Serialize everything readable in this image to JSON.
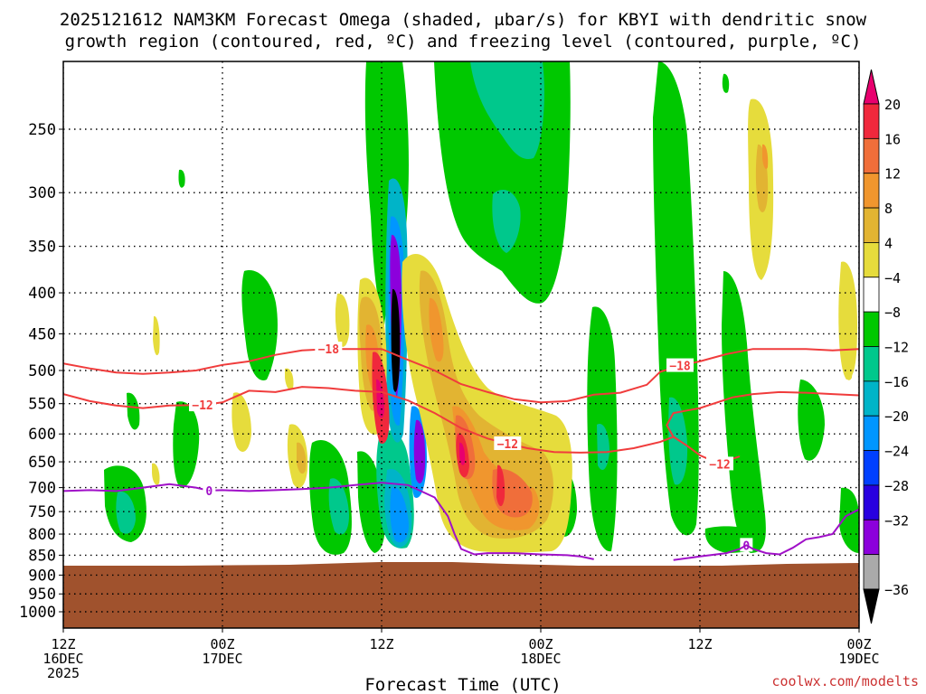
{
  "title_line1": "2025121612 NAM3KM Forecast Omega (shaded, μbar/s) for KBYI with dendritic snow",
  "title_line2": "growth region (contoured, red, ºC) and freezing level (contoured, purple, ºC)",
  "xlabel": "Forecast Time (UTC)",
  "credit": "coolwx.com/modelts",
  "chart_data": {
    "type": "heatmap",
    "title": "2025121612 NAM3KM Forecast Omega (shaded, μbar/s) for KBYI with dendritic snow growth region (contoured, red, ºC) and freezing level (contoured, purple, ºC)",
    "xlabel": "Forecast Time (UTC)",
    "ylabel": "",
    "x_ticks": [
      {
        "hour": 0,
        "line1": "12Z",
        "line2": "16DEC",
        "line3": "2025"
      },
      {
        "hour": 12,
        "line1": "00Z",
        "line2": "17DEC",
        "line3": ""
      },
      {
        "hour": 24,
        "line1": "12Z",
        "line2": "",
        "line3": ""
      },
      {
        "hour": 36,
        "line1": "00Z",
        "line2": "18DEC",
        "line3": ""
      },
      {
        "hour": 48,
        "line1": "12Z",
        "line2": "",
        "line3": ""
      },
      {
        "hour": 60,
        "line1": "00Z",
        "line2": "19DEC",
        "line3": ""
      }
    ],
    "xlim": [
      0,
      60
    ],
    "y_ticks": [
      250,
      300,
      350,
      400,
      450,
      500,
      550,
      600,
      650,
      700,
      750,
      800,
      850,
      900,
      950,
      1000
    ],
    "ylim": [
      200,
      1050
    ],
    "y_scale": "log-pressure (inverted)",
    "grid": true,
    "colorbar": {
      "labels": [
        "20",
        "16",
        "12",
        "8",
        "4",
        "−4",
        "−8",
        "−12",
        "−16",
        "−20",
        "−24",
        "−28",
        "−32",
        "−36"
      ],
      "levels": [
        20,
        16,
        12,
        8,
        4,
        -4,
        -8,
        -12,
        -16,
        -20,
        -24,
        -28,
        -32,
        -36
      ],
      "colors": [
        "#e8006e",
        "#f0283c",
        "#f06e3a",
        "#f0962e",
        "#e2b432",
        "#e6dc3c",
        "#ffffff",
        "#00c800",
        "#00c88c",
        "#00b4c8",
        "#0096ff",
        "#0040ff",
        "#2800e0",
        "#8c00dc",
        "#aaaaaa",
        "#000000"
      ]
    },
    "terrain": {
      "surface_pressure": 868,
      "color": "#a0522d"
    },
    "contours": [
      {
        "name": "-18",
        "color": "#f03c3c",
        "label_positions": [
          {
            "hour": 20,
            "p": 470
          },
          {
            "hour": 46.5,
            "p": 493
          }
        ],
        "points": [
          [
            0,
            490
          ],
          [
            2,
            497
          ],
          [
            4,
            503
          ],
          [
            6,
            505
          ],
          [
            8,
            503
          ],
          [
            10,
            500
          ],
          [
            12,
            492
          ],
          [
            14,
            487
          ],
          [
            16,
            478
          ],
          [
            18,
            472
          ],
          [
            20,
            470
          ],
          [
            22,
            470
          ],
          [
            24,
            470
          ],
          [
            26,
            485
          ],
          [
            28,
            500
          ],
          [
            30,
            520
          ],
          [
            32,
            532
          ],
          [
            34,
            543
          ],
          [
            36,
            548
          ],
          [
            38,
            546
          ],
          [
            40,
            536
          ],
          [
            42,
            533
          ],
          [
            44,
            521
          ],
          [
            45,
            502
          ],
          [
            46.5,
            493
          ],
          [
            48,
            487
          ],
          [
            50,
            477
          ],
          [
            52,
            470
          ],
          [
            54,
            470
          ],
          [
            56,
            470
          ],
          [
            58,
            472
          ],
          [
            60,
            470
          ]
        ]
      },
      {
        "name": "-12",
        "color": "#f03c3c",
        "label_positions": [
          {
            "hour": 10.5,
            "p": 552
          },
          {
            "hour": 33.5,
            "p": 617
          },
          {
            "hour": 49.5,
            "p": 654
          }
        ],
        "points": [
          [
            0,
            535
          ],
          [
            2,
            546
          ],
          [
            4,
            553
          ],
          [
            6,
            557
          ],
          [
            8,
            553
          ],
          [
            10.5,
            552
          ],
          [
            12,
            548
          ],
          [
            14,
            530
          ],
          [
            16,
            532
          ],
          [
            18,
            524
          ],
          [
            20,
            526
          ],
          [
            22,
            530
          ],
          [
            24,
            532
          ],
          [
            26,
            545
          ],
          [
            28,
            565
          ],
          [
            30,
            590
          ],
          [
            32,
            608
          ],
          [
            33.5,
            617
          ],
          [
            35,
            625
          ],
          [
            37,
            632
          ],
          [
            39,
            633
          ],
          [
            41,
            632
          ],
          [
            43,
            625
          ],
          [
            45,
            614
          ],
          [
            46,
            605
          ],
          [
            47,
            620
          ],
          [
            48,
            638
          ],
          [
            49.5,
            654
          ],
          [
            50,
            648
          ],
          [
            51,
            640
          ]
        ]
      },
      {
        "name": "-12b",
        "color": "#f03c3c",
        "label_positions": [],
        "points": [
          [
            50.5,
            540
          ],
          [
            52,
            535
          ],
          [
            54,
            532
          ],
          [
            56,
            533
          ],
          [
            58,
            535
          ],
          [
            60,
            537
          ]
        ]
      },
      {
        "name": "-12c",
        "color": "#f03c3c",
        "label_positions": [],
        "points": [
          [
            46,
            605
          ],
          [
            45.5,
            585
          ],
          [
            46,
            565
          ],
          [
            48,
            557
          ],
          [
            50.5,
            540
          ]
        ]
      },
      {
        "name": "0",
        "color": "#a010c8",
        "label_positions": [
          {
            "hour": 11,
            "p": 706
          },
          {
            "hour": 51.5,
            "p": 826
          }
        ],
        "points": [
          [
            0,
            707
          ],
          [
            2,
            705
          ],
          [
            4,
            707
          ],
          [
            6,
            700
          ],
          [
            8,
            693
          ],
          [
            10,
            700
          ],
          [
            11,
            706
          ],
          [
            12,
            705
          ],
          [
            14,
            707
          ],
          [
            16,
            705
          ],
          [
            18,
            703
          ],
          [
            20,
            700
          ],
          [
            22,
            695
          ],
          [
            24,
            690
          ],
          [
            26,
            695
          ],
          [
            28,
            720
          ],
          [
            29,
            760
          ],
          [
            29.5,
            800
          ],
          [
            30,
            835
          ],
          [
            31,
            848
          ],
          [
            32,
            845
          ],
          [
            34,
            845
          ],
          [
            36,
            848
          ],
          [
            38,
            850
          ],
          [
            39,
            853
          ],
          [
            40,
            860
          ]
        ]
      },
      {
        "name": "0b",
        "color": "#a010c8",
        "label_positions": [],
        "points": [
          [
            46,
            862
          ],
          [
            48,
            853
          ],
          [
            50,
            845
          ],
          [
            51,
            835
          ],
          [
            51.5,
            826
          ],
          [
            52,
            835
          ],
          [
            53,
            845
          ],
          [
            54,
            848
          ],
          [
            55,
            832
          ],
          [
            56,
            812
          ],
          [
            57,
            807
          ],
          [
            58,
            800
          ],
          [
            59,
            760
          ],
          [
            60,
            745
          ]
        ]
      }
    ]
  }
}
